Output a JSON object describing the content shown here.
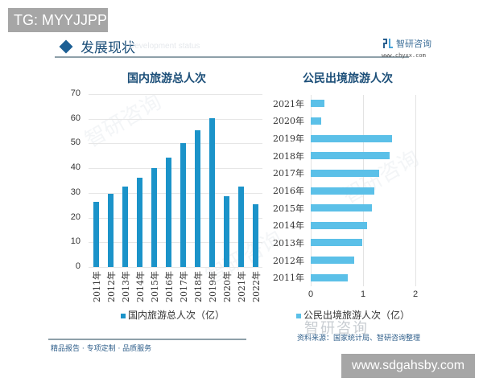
{
  "overlay": {
    "tg_label": "TG: MYYJJPP",
    "site_label": "www.sdgahsby.com"
  },
  "header": {
    "title": "发展现状",
    "subtitle_faded": "Development status",
    "logo_name": "智研咨询",
    "logo_url": "www.chyxx.com"
  },
  "footer": {
    "left": "精品报告 · 专项定制 · 品质服务",
    "watermark": "智研咨询",
    "source": "资料来源：国家统计局、智研咨询整理"
  },
  "colors": {
    "domestic_bar": "#1b93c9",
    "outbound_bar": "#5bc0e8",
    "title": "#1b4e78",
    "footer_text": "#2e5e8a"
  },
  "chart_data": [
    {
      "type": "bar",
      "title": "国内旅游总人次",
      "categories": [
        "2011年",
        "2012年",
        "2013年",
        "2014年",
        "2015年",
        "2016年",
        "2017年",
        "2018年",
        "2019年",
        "2020年",
        "2021年",
        "2022年"
      ],
      "series": [
        {
          "name": "国内旅游总人次（亿）",
          "values": [
            26.4,
            29.6,
            32.6,
            36.1,
            40.0,
            44.4,
            50.0,
            55.4,
            60.1,
            28.8,
            32.5,
            25.3
          ]
        }
      ],
      "xlabel": "",
      "ylabel": "",
      "yticks": [
        "0",
        "10",
        "20",
        "30",
        "40",
        "50",
        "60",
        "70"
      ],
      "ylim": [
        0,
        70
      ],
      "grid": true,
      "legend_position": "bottom"
    },
    {
      "type": "bar",
      "orientation": "horizontal",
      "title": "公民出境旅游人次",
      "categories": [
        "2021年",
        "2020年",
        "2019年",
        "2018年",
        "2017年",
        "2016年",
        "2015年",
        "2014年",
        "2013年",
        "2012年",
        "2011年"
      ],
      "series": [
        {
          "name": "公民出境旅游人次（亿）",
          "values": [
            0.26,
            0.2,
            1.55,
            1.5,
            1.31,
            1.22,
            1.17,
            1.07,
            0.98,
            0.83,
            0.7
          ]
        }
      ],
      "xticks": [
        "0",
        "1",
        "2"
      ],
      "xlim": [
        0,
        2
      ],
      "grid": true,
      "legend_position": "bottom"
    }
  ]
}
